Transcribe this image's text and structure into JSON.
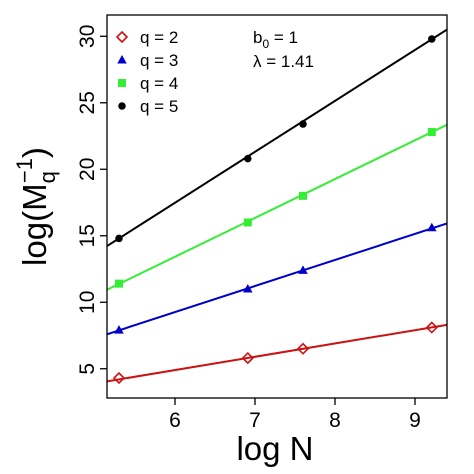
{
  "chart_data": {
    "type": "scatter",
    "xlabel": "log N",
    "ylabel": {
      "prefix": "log(M",
      "sub": "q",
      "sup": "−1",
      "suffix": ")"
    },
    "xlim": [
      5.15,
      9.4
    ],
    "ylim": [
      2.8,
      31.6
    ],
    "xticks": [
      6,
      7,
      8,
      9
    ],
    "yticks": [
      5,
      10,
      15,
      20,
      25,
      30
    ],
    "grid": false,
    "legend_position": "top-left",
    "params": [
      {
        "symbol": "b",
        "sub": "0",
        "rest": " = 1"
      },
      {
        "symbol": "λ",
        "sub": "",
        "rest": " = 1.41"
      }
    ],
    "series": [
      {
        "name": "q = 2",
        "color": "#cc1111",
        "marker": "diamond-open",
        "x": [
          5.3,
          6.91,
          7.6,
          9.21
        ],
        "y": [
          4.3,
          5.8,
          6.5,
          8.1
        ],
        "fit": {
          "slope": 1.0,
          "intercept": -1.1
        }
      },
      {
        "name": "q = 3",
        "color": "#0000cc",
        "marker": "triangle",
        "x": [
          5.3,
          6.91,
          7.6,
          9.21
        ],
        "y": [
          7.9,
          11.0,
          12.4,
          15.6
        ],
        "fit": {
          "slope": 1.96,
          "intercept": -2.5
        }
      },
      {
        "name": "q = 4",
        "color": "#33ee33",
        "marker": "square",
        "x": [
          5.3,
          6.91,
          7.6,
          9.21
        ],
        "y": [
          11.4,
          16.0,
          18.0,
          22.8
        ],
        "fit": {
          "slope": 2.92,
          "intercept": -4.1
        }
      },
      {
        "name": "q = 5",
        "color": "#000000",
        "marker": "circle",
        "x": [
          5.3,
          6.91,
          7.6,
          9.21
        ],
        "y": [
          14.8,
          20.8,
          23.4,
          29.8
        ],
        "fit": {
          "slope": 3.83,
          "intercept": -5.5
        }
      }
    ]
  }
}
